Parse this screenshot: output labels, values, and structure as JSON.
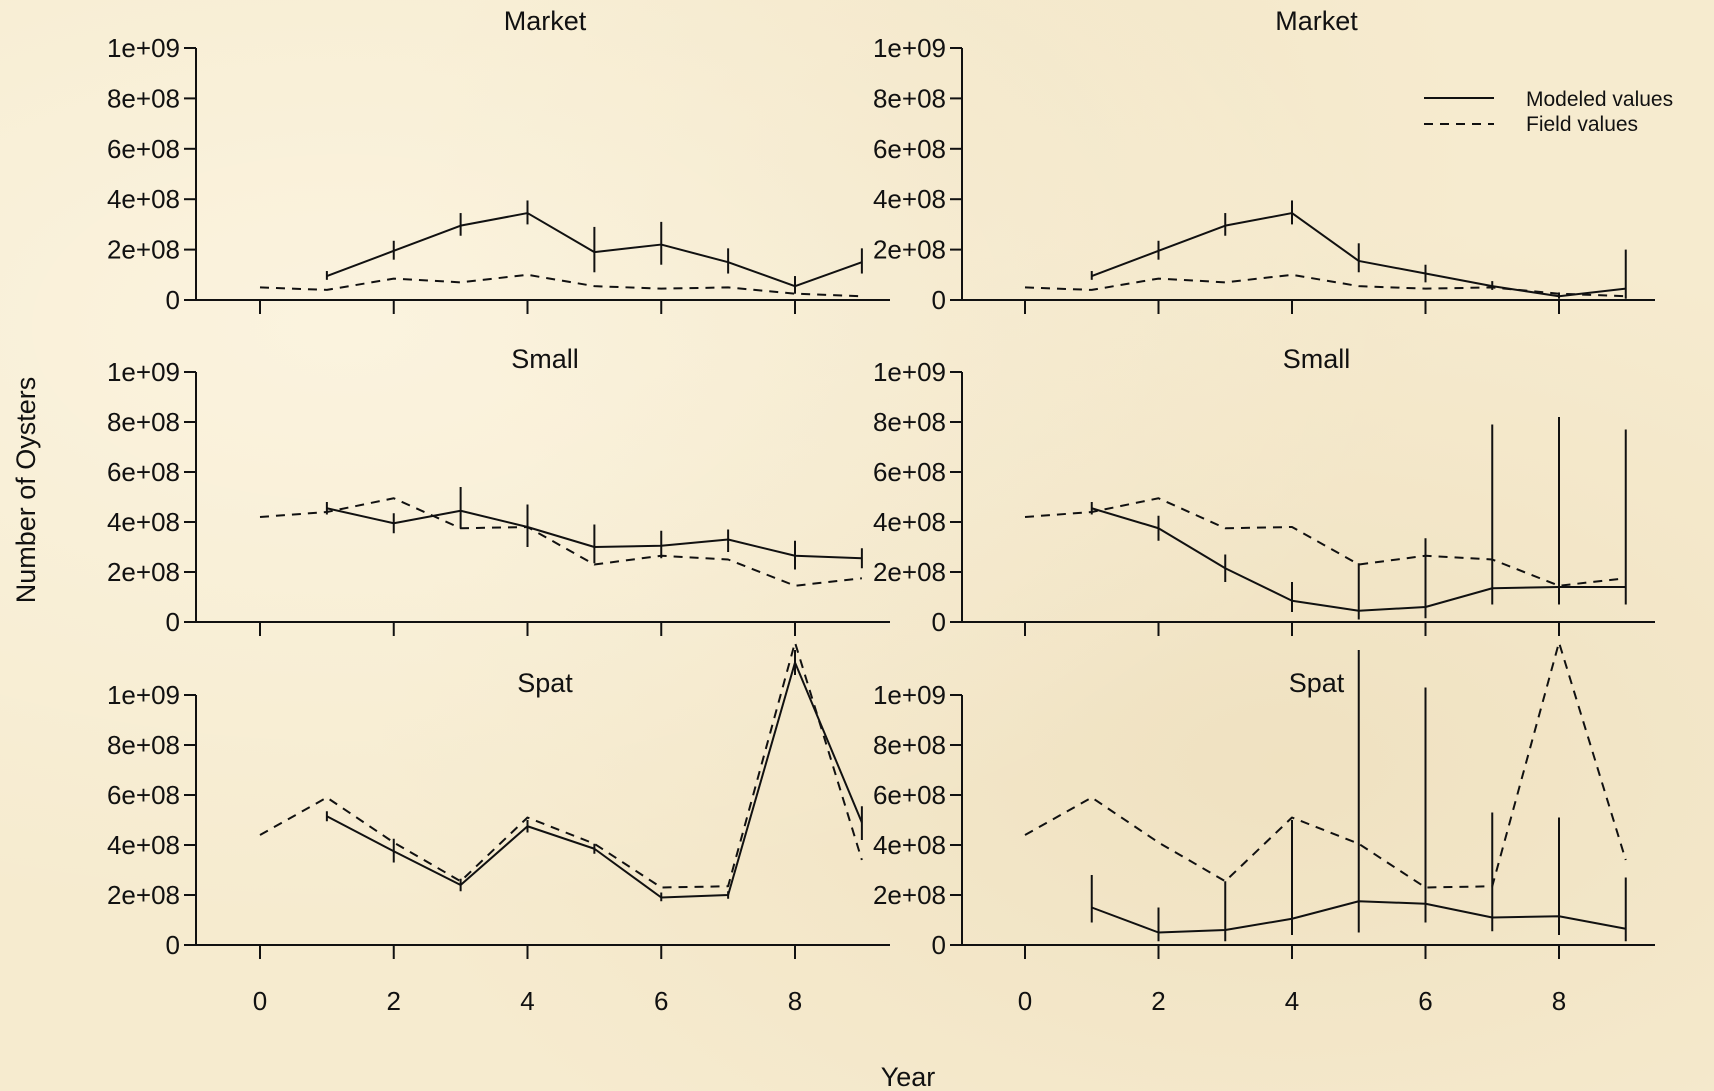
{
  "chart_data": {
    "type": "line",
    "layout": "3 rows x 2 columns",
    "xlabel": "Year",
    "ylabel": "Number of Oysters",
    "x_ticks": [
      0,
      2,
      4,
      6,
      8
    ],
    "y_ticks": [
      0,
      200000000,
      400000000,
      600000000,
      800000000,
      1000000000
    ],
    "y_tick_labels": [
      "0",
      "2e+08",
      "4e+08",
      "6e+08",
      "8e+08",
      "1e+09"
    ],
    "xlim": [
      -1.1,
      9.4
    ],
    "ylim": [
      0,
      1000000000
    ],
    "grid": false,
    "legend": {
      "position": "top-right of right Market panel",
      "entries": [
        {
          "label": "Modeled values",
          "style": "solid"
        },
        {
          "label": "Field values",
          "style": "dashed"
        }
      ]
    },
    "panels": [
      {
        "title": "Market",
        "column": "left",
        "row": 0,
        "series": [
          {
            "name": "Modeled values",
            "style": "solid",
            "x": [
              1,
              2,
              3,
              4,
              5,
              6,
              7,
              8,
              9
            ],
            "y": [
              95000000,
              195000000,
              295000000,
              345000000,
              190000000,
              220000000,
              150000000,
              55000000,
              150000000
            ],
            "err_low": [
              80000000,
              160000000,
              255000000,
              300000000,
              110000000,
              140000000,
              105000000,
              25000000,
              105000000
            ],
            "err_high": [
              115000000,
              235000000,
              345000000,
              395000000,
              290000000,
              310000000,
              205000000,
              95000000,
              205000000
            ]
          },
          {
            "name": "Field values",
            "style": "dashed",
            "x": [
              0,
              1,
              2,
              3,
              4,
              5,
              6,
              7,
              8,
              9
            ],
            "y": [
              50000000,
              40000000,
              85000000,
              70000000,
              100000000,
              55000000,
              45000000,
              50000000,
              25000000,
              15000000
            ]
          }
        ]
      },
      {
        "title": "Market",
        "column": "right",
        "row": 0,
        "series": [
          {
            "name": "Modeled values",
            "style": "solid",
            "x": [
              1,
              2,
              3,
              4,
              5,
              6,
              7,
              8,
              9
            ],
            "y": [
              95000000,
              195000000,
              295000000,
              345000000,
              155000000,
              105000000,
              55000000,
              15000000,
              45000000
            ],
            "err_low": [
              80000000,
              160000000,
              255000000,
              300000000,
              110000000,
              70000000,
              40000000,
              5000000,
              5000000
            ],
            "err_high": [
              115000000,
              235000000,
              345000000,
              395000000,
              225000000,
              140000000,
              75000000,
              30000000,
              200000000
            ]
          },
          {
            "name": "Field values",
            "style": "dashed",
            "x": [
              0,
              1,
              2,
              3,
              4,
              5,
              6,
              7,
              8,
              9
            ],
            "y": [
              50000000,
              40000000,
              85000000,
              70000000,
              100000000,
              55000000,
              45000000,
              50000000,
              25000000,
              15000000
            ]
          }
        ]
      },
      {
        "title": "Small",
        "column": "left",
        "row": 1,
        "series": [
          {
            "name": "Modeled values",
            "style": "solid",
            "x": [
              1,
              2,
              3,
              4,
              5,
              6,
              7,
              8,
              9
            ],
            "y": [
              455000000,
              395000000,
              445000000,
              380000000,
              300000000,
              305000000,
              330000000,
              265000000,
              255000000
            ],
            "err_low": [
              430000000,
              355000000,
              375000000,
              300000000,
              235000000,
              255000000,
              280000000,
              210000000,
              215000000
            ],
            "err_high": [
              480000000,
              435000000,
              540000000,
              470000000,
              390000000,
              365000000,
              370000000,
              325000000,
              295000000
            ]
          },
          {
            "name": "Field values",
            "style": "dashed",
            "x": [
              0,
              1,
              2,
              3,
              4,
              5,
              6,
              7,
              8,
              9
            ],
            "y": [
              420000000,
              440000000,
              495000000,
              375000000,
              380000000,
              230000000,
              265000000,
              250000000,
              145000000,
              175000000
            ]
          }
        ]
      },
      {
        "title": "Small",
        "column": "right",
        "row": 1,
        "series": [
          {
            "name": "Modeled values",
            "style": "solid",
            "x": [
              1,
              2,
              3,
              4,
              5,
              6,
              7,
              8,
              9
            ],
            "y": [
              455000000,
              375000000,
              215000000,
              85000000,
              45000000,
              60000000,
              135000000,
              140000000,
              140000000
            ],
            "err_low": [
              430000000,
              325000000,
              160000000,
              40000000,
              10000000,
              15000000,
              70000000,
              70000000,
              70000000
            ],
            "err_high": [
              480000000,
              425000000,
              270000000,
              160000000,
              235000000,
              335000000,
              790000000,
              820000000,
              770000000
            ]
          },
          {
            "name": "Field values",
            "style": "dashed",
            "x": [
              0,
              1,
              2,
              3,
              4,
              5,
              6,
              7,
              8,
              9
            ],
            "y": [
              420000000,
              440000000,
              495000000,
              375000000,
              380000000,
              230000000,
              265000000,
              250000000,
              145000000,
              175000000
            ]
          }
        ]
      },
      {
        "title": "Spat",
        "column": "left",
        "row": 2,
        "series": [
          {
            "name": "Modeled values",
            "style": "solid",
            "x": [
              1,
              2,
              3,
              4,
              5,
              6,
              7,
              8,
              9
            ],
            "y": [
              515000000,
              375000000,
              240000000,
              475000000,
              385000000,
              190000000,
              200000000,
              1130000000,
              490000000
            ],
            "err_low": [
              495000000,
              330000000,
              215000000,
              450000000,
              365000000,
              175000000,
              185000000,
              1080000000,
              420000000
            ],
            "err_high": [
              535000000,
              425000000,
              265000000,
              500000000,
              405000000,
              210000000,
              215000000,
              1180000000,
              555000000
            ]
          },
          {
            "name": "Field values",
            "style": "dashed",
            "x": [
              0,
              1,
              2,
              3,
              4,
              5,
              6,
              7,
              8,
              9
            ],
            "y": [
              440000000,
              590000000,
              410000000,
              255000000,
              510000000,
              405000000,
              230000000,
              235000000,
              1210000000,
              340000000
            ]
          }
        ]
      },
      {
        "title": "Spat",
        "column": "right",
        "row": 2,
        "series": [
          {
            "name": "Modeled values",
            "style": "solid",
            "x": [
              1,
              2,
              3,
              4,
              5,
              6,
              7,
              8,
              9
            ],
            "y": [
              150000000,
              50000000,
              60000000,
              105000000,
              175000000,
              165000000,
              110000000,
              115000000,
              65000000
            ],
            "err_low": [
              90000000,
              15000000,
              15000000,
              40000000,
              50000000,
              90000000,
              55000000,
              40000000,
              15000000
            ],
            "err_high": [
              280000000,
              150000000,
              255000000,
              500000000,
              1180000000,
              1030000000,
              530000000,
              510000000,
              270000000
            ]
          },
          {
            "name": "Field values",
            "style": "dashed",
            "x": [
              0,
              1,
              2,
              3,
              4,
              5,
              6,
              7,
              8,
              9
            ],
            "y": [
              440000000,
              590000000,
              410000000,
              255000000,
              510000000,
              405000000,
              230000000,
              235000000,
              1210000000,
              340000000
            ]
          }
        ]
      }
    ]
  }
}
